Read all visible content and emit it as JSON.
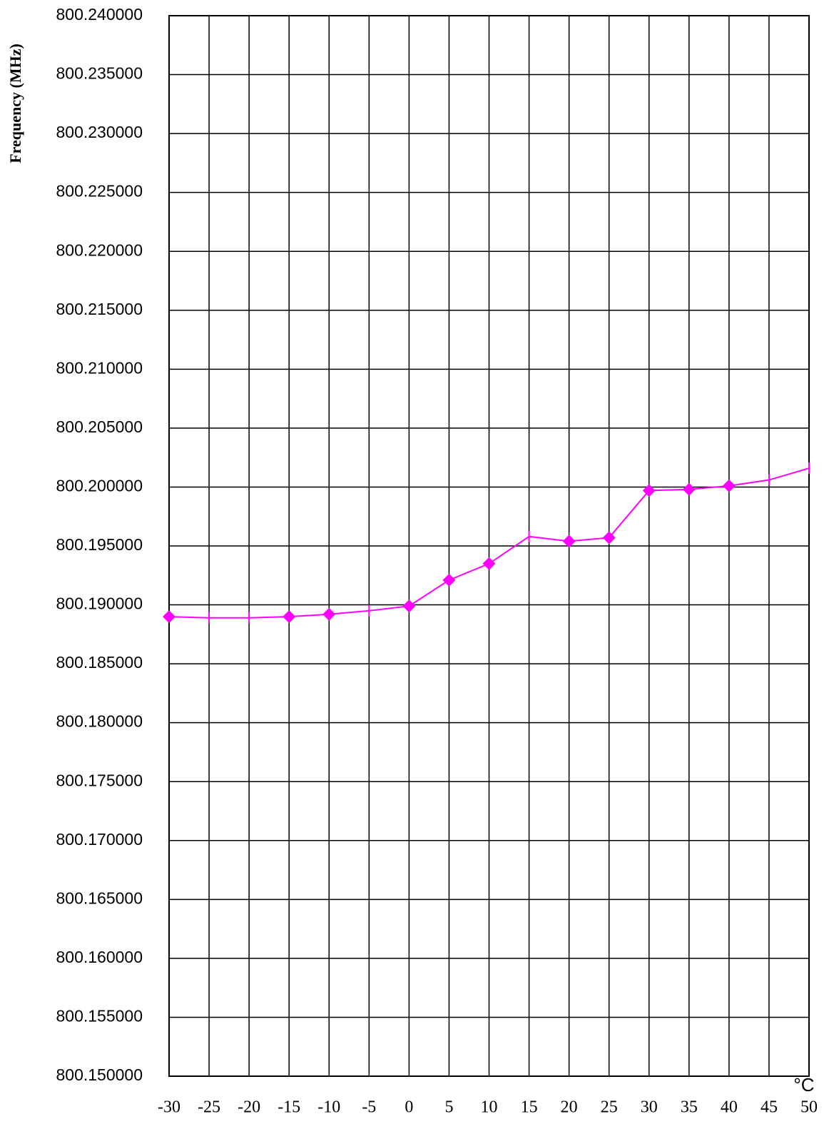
{
  "chart_data": {
    "type": "line",
    "y_label": "Frequency (MHz)",
    "x_unit": "°C",
    "x": [
      -30,
      -25,
      -20,
      -15,
      -10,
      -5,
      0,
      5,
      10,
      15,
      20,
      25,
      30,
      35,
      40,
      45,
      50
    ],
    "values": [
      800.189,
      800.1889,
      800.1889,
      800.189,
      800.1892,
      800.1895,
      800.1899,
      800.1921,
      800.1935,
      800.1958,
      800.1954,
      800.1957,
      800.1997,
      800.1998,
      800.2001,
      800.2006,
      800.2016
    ],
    "markers": [
      "diamond",
      "tick",
      "tick",
      "diamond",
      "diamond",
      "tick",
      "diamond",
      "diamond",
      "diamond",
      "tick",
      "diamond",
      "diamond",
      "diamond",
      "diamond",
      "diamond",
      "tick",
      "tick"
    ],
    "color": "#ff00ff",
    "xlim": [
      -30,
      50
    ],
    "xticks": [
      -30,
      -25,
      -20,
      -15,
      -10,
      -5,
      0,
      5,
      10,
      15,
      20,
      25,
      30,
      35,
      40,
      45,
      50
    ],
    "ylim": [
      800.15,
      800.24
    ],
    "yticks": [
      {
        "value": 800.15,
        "label": "800.150000"
      },
      {
        "value": 800.155,
        "label": "800.155000"
      },
      {
        "value": 800.16,
        "label": "800.160000"
      },
      {
        "value": 800.165,
        "label": "800.165000"
      },
      {
        "value": 800.17,
        "label": "800.170000"
      },
      {
        "value": 800.175,
        "label": "800.175000"
      },
      {
        "value": 800.18,
        "label": "800.180000"
      },
      {
        "value": 800.185,
        "label": "800.185000"
      },
      {
        "value": 800.19,
        "label": "800.190000"
      },
      {
        "value": 800.195,
        "label": "800.195000"
      },
      {
        "value": 800.2,
        "label": "800.200000"
      },
      {
        "value": 800.205,
        "label": "800.205000"
      },
      {
        "value": 800.21,
        "label": "800.210000"
      },
      {
        "value": 800.215,
        "label": "800.215000"
      },
      {
        "value": 800.22,
        "label": "800.220000"
      },
      {
        "value": 800.225,
        "label": "800.225000"
      },
      {
        "value": 800.23,
        "label": "800.230000"
      },
      {
        "value": 800.235,
        "label": "800.235000"
      },
      {
        "value": 800.24,
        "label": "800.240000"
      }
    ],
    "grid": true
  }
}
